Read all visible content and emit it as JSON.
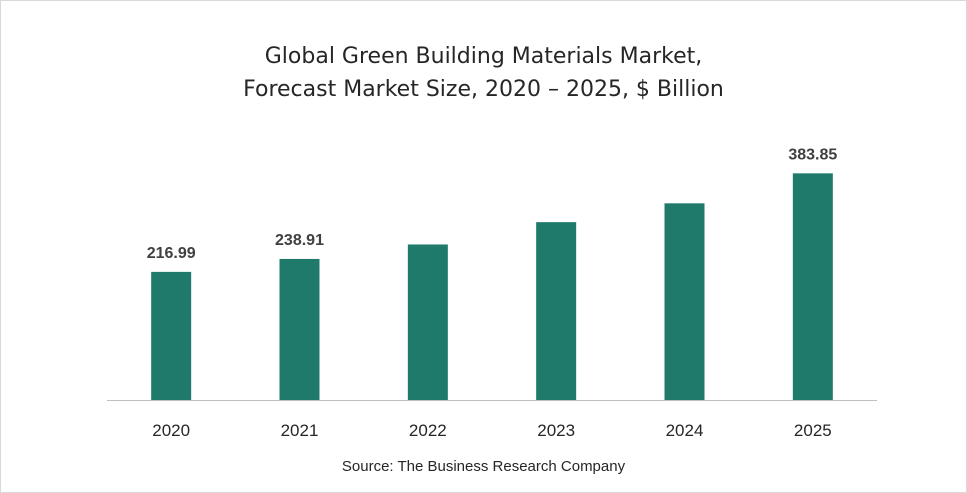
{
  "chart_data": {
    "type": "bar",
    "title_lines": [
      "Global Green Building Materials Market,",
      "Forecast Market Size, 2020 – 2025, $ Billion"
    ],
    "categories": [
      "2020",
      "2021",
      "2022",
      "2023",
      "2024",
      "2025"
    ],
    "values": [
      216.99,
      238.91,
      263.4,
      301.2,
      333.1,
      383.85
    ],
    "data_labels": [
      "216.99",
      "238.91",
      "",
      "",
      "",
      "383.85"
    ],
    "ylim": [
      0,
      420
    ],
    "grid": false,
    "legend": "none",
    "bar_color": "#1f7a6c",
    "axis_color": "#bfbfbf"
  },
  "source": "Source: The Business Research Company"
}
